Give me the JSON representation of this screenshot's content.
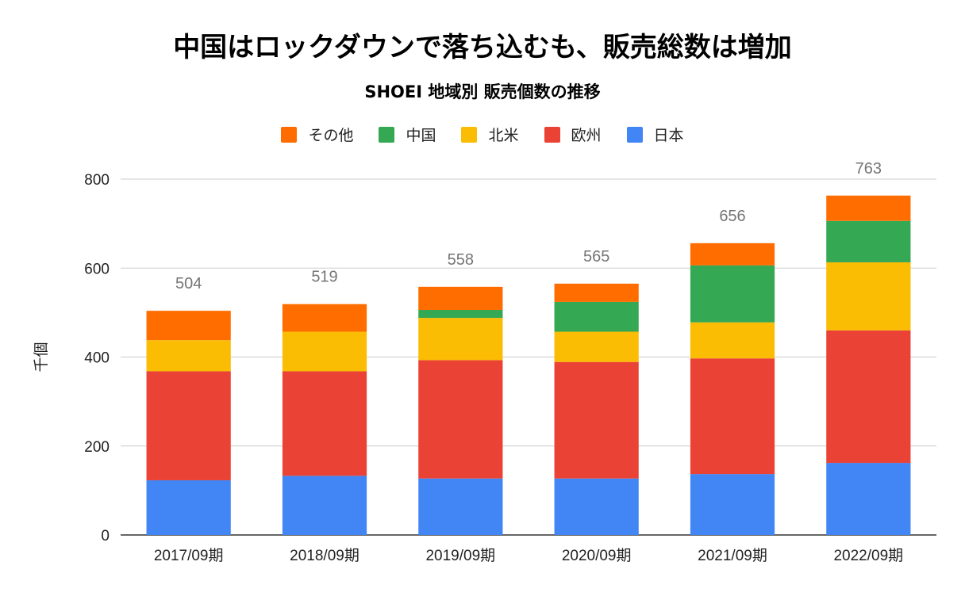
{
  "chart_data": {
    "type": "bar",
    "stacked": true,
    "title": "中国はロックダウンで落ち込むも、販売総数は増加",
    "subtitle": "SHOEI 地域別 販売個数の推移",
    "ylabel": "千個",
    "xlabel": "",
    "ylim": [
      0,
      800
    ],
    "yticks": [
      0,
      200,
      400,
      600,
      800
    ],
    "grid": true,
    "legend_position": "top",
    "categories": [
      "2017/09期",
      "2018/09期",
      "2019/09期",
      "2020/09期",
      "2021/09期",
      "2022/09期"
    ],
    "series": [
      {
        "name": "日本",
        "color": "#4285F4",
        "values": [
          123,
          133,
          127,
          127,
          137,
          162
        ]
      },
      {
        "name": "欧州",
        "color": "#EA4335",
        "values": [
          245,
          235,
          266,
          262,
          260,
          298
        ]
      },
      {
        "name": "北米",
        "color": "#FBBC04",
        "values": [
          70,
          89,
          95,
          68,
          81,
          153
        ]
      },
      {
        "name": "中国",
        "color": "#34A853",
        "values": [
          0,
          0,
          18,
          67,
          128,
          93
        ]
      },
      {
        "name": "その他",
        "color": "#FF6D01",
        "values": [
          66,
          62,
          52,
          41,
          50,
          57
        ]
      }
    ],
    "totals": [
      504,
      519,
      558,
      565,
      656,
      763
    ],
    "legend_order": [
      "その他",
      "中国",
      "北米",
      "欧州",
      "日本"
    ]
  }
}
